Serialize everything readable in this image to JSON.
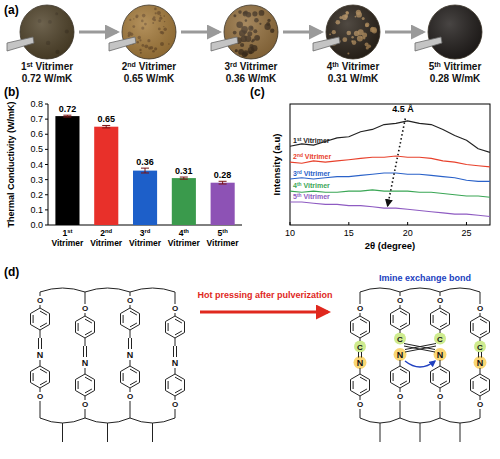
{
  "panel_a": {
    "label": "(a)",
    "samples": [
      {
        "name": "1st Vitrimer",
        "conductivity": "0.72 W/mK",
        "color": "#4e4128"
      },
      {
        "name": "2nd Vitrimer",
        "conductivity": "0.65 W/mK",
        "color": "#a47a3a"
      },
      {
        "name": "3rd Vitrimer",
        "conductivity": "0.36 W/mK",
        "color": "#94703e"
      },
      {
        "name": "4th Vitrimer",
        "conductivity": "0.31 W/mK",
        "color": "#2a2219"
      },
      {
        "name": "5th Vitrimer",
        "conductivity": "0.28 W/mK",
        "color": "#201c1a"
      }
    ]
  },
  "chart_data": [
    {
      "type": "bar",
      "panel": "(b)",
      "y_label": "Thermal Conductivity (W/mK)",
      "categories": [
        "1st Vitrimer",
        "2nd Vitrimer",
        "3rd Vitrimer",
        "4th Vitrimer",
        "5th Vitrimer"
      ],
      "values": [
        0.72,
        0.65,
        0.36,
        0.31,
        0.28
      ],
      "errors": [
        0.006,
        0.008,
        0.016,
        0.007,
        0.009
      ],
      "colors": [
        "#000000",
        "#e8302a",
        "#1d5fc9",
        "#3a9a4c",
        "#8d52b5"
      ],
      "ylim": [
        0,
        0.8
      ],
      "yticks": [
        {
          "value": 0,
          "label": "0.0"
        },
        0.1,
        0.2,
        0.3,
        0.4,
        0.5,
        0.6,
        0.7,
        0.8
      ],
      "data_labels": true
    },
    {
      "type": "line",
      "panel": "(c)",
      "x_label": "2θ (degree)",
      "y_label": "Intensity (a.u)",
      "x": [
        10,
        11,
        12,
        13,
        14,
        15,
        16,
        17,
        18,
        19,
        20,
        21,
        22,
        23,
        24,
        25,
        26,
        27
      ],
      "series": [
        {
          "name": "1st Vitrimer",
          "color": "#222222",
          "values": [
            6.5,
            6.7,
            6.6,
            6.9,
            7.2,
            7.3,
            7.7,
            7.9,
            8.3,
            8.4,
            8.6,
            8.4,
            8.3,
            7.9,
            7.4,
            7.0,
            6.3,
            6.0
          ]
        },
        {
          "name": "2nd Vitrimer",
          "color": "#e8412c",
          "values": [
            5.2,
            5.1,
            5.3,
            5.2,
            5.3,
            5.4,
            5.5,
            5.6,
            5.6,
            5.7,
            5.6,
            5.6,
            5.5,
            5.3,
            5.2,
            5.0,
            4.9,
            4.8
          ]
        },
        {
          "name": "3rd Vitrimer",
          "color": "#2a62c9",
          "values": [
            3.8,
            3.9,
            3.8,
            3.9,
            4.0,
            4.0,
            4.1,
            4.2,
            4.3,
            4.3,
            4.2,
            4.2,
            4.1,
            4.0,
            3.9,
            3.7,
            3.6,
            3.6
          ]
        },
        {
          "name": "4th Vitrimer",
          "color": "#3aa655",
          "values": [
            2.8,
            2.7,
            2.8,
            2.7,
            2.7,
            2.8,
            2.8,
            2.9,
            2.8,
            2.8,
            2.8,
            2.7,
            2.7,
            2.6,
            2.5,
            2.4,
            2.4,
            2.3
          ]
        },
        {
          "name": "5th Vitrimer",
          "color": "#8e5bc2",
          "values": [
            1.9,
            1.9,
            1.8,
            1.7,
            1.7,
            1.6,
            1.6,
            1.5,
            1.4,
            1.4,
            1.3,
            1.2,
            1.1,
            1.0,
            0.9,
            0.9,
            0.8,
            0.7
          ]
        }
      ],
      "xlim": [
        10,
        27
      ],
      "xticks": [
        10,
        15,
        20,
        25
      ],
      "ylim": [
        0,
        10
      ],
      "tick_labels": "x",
      "annotations": [
        {
          "text": "4.5 Å",
          "x": 19.6,
          "y": 9.3,
          "arrow_from": [
            19.8,
            8.8
          ],
          "arrow_to": [
            18.3,
            1.6
          ]
        }
      ]
    }
  ],
  "panel_d": {
    "label": "(d)",
    "arrow_text": "Hot pressing after pulverization",
    "bond_text": "Imine exchange bond",
    "atoms": {
      "nitrogen": "N",
      "carbon": "C",
      "oxygen": "O"
    }
  }
}
